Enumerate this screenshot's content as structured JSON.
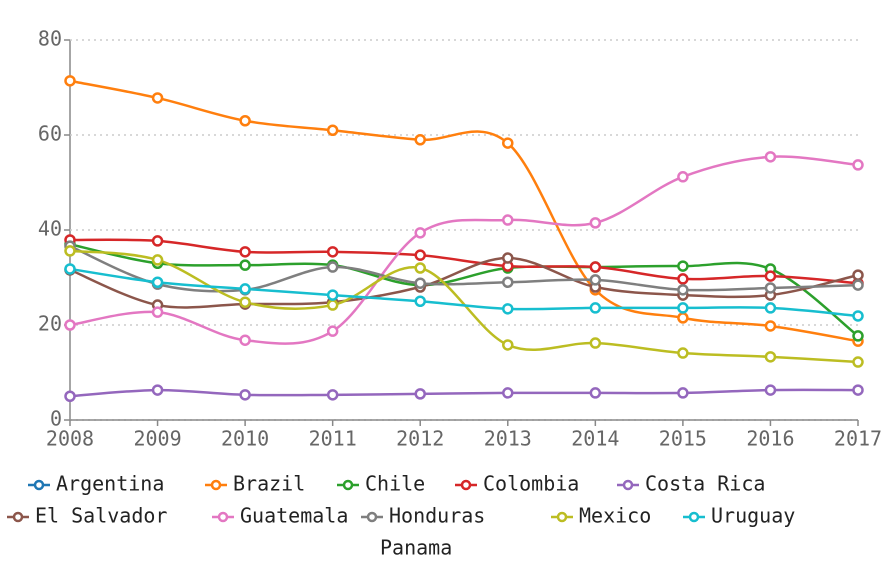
{
  "chart_data": {
    "type": "line",
    "x": [
      2008,
      2009,
      2010,
      2011,
      2012,
      2013,
      2014,
      2015,
      2016,
      2017
    ],
    "xlim": [
      2008,
      2017
    ],
    "xticks": [
      2008,
      2009,
      2010,
      2011,
      2012,
      2013,
      2014,
      2015,
      2016,
      2017
    ],
    "ylim": [
      0,
      80
    ],
    "yticks": [
      0,
      20,
      40,
      60,
      80
    ],
    "grid": true,
    "legend": "bottom",
    "series": [
      {
        "name": "Argentina",
        "color": "#1f77b4",
        "values": [
          null,
          null,
          null,
          null,
          null,
          null,
          null,
          null,
          null,
          null
        ]
      },
      {
        "name": "Brazil",
        "color": "#ff7f0e",
        "values": [
          71.4,
          67.8,
          63.0,
          61.0,
          59.0,
          58.3,
          27.4,
          21.5,
          19.8,
          16.6
        ]
      },
      {
        "name": "Chile",
        "color": "#2ca02c",
        "values": [
          37.0,
          33.0,
          32.6,
          32.6,
          28.4,
          32.0,
          32.2,
          32.4,
          31.8,
          17.7
        ]
      },
      {
        "name": "Colombia",
        "color": "#d62728",
        "values": [
          37.9,
          37.7,
          35.4,
          35.4,
          34.7,
          32.4,
          32.2,
          29.7,
          30.3,
          28.8
        ]
      },
      {
        "name": "Costa Rica",
        "color": "#9467bd",
        "values": [
          5.0,
          6.3,
          5.3,
          5.3,
          5.5,
          5.7,
          5.7,
          5.7,
          6.3,
          6.3
        ]
      },
      {
        "name": "El Salvador",
        "color": "#8c564b",
        "values": [
          31.6,
          24.2,
          24.4,
          24.8,
          28.0,
          34.1,
          28.0,
          26.3,
          26.3,
          30.5
        ]
      },
      {
        "name": "Guatemala",
        "color": "#e377c2",
        "values": [
          20.0,
          22.7,
          16.8,
          18.7,
          39.4,
          42.1,
          41.5,
          51.2,
          55.4,
          53.7
        ]
      },
      {
        "name": "Honduras",
        "color": "#7f7f7f",
        "values": [
          36.6,
          28.6,
          27.4,
          32.2,
          28.8,
          29.0,
          29.5,
          27.4,
          27.8,
          28.4
        ]
      },
      {
        "name": "Mexico",
        "color": "#bcbd22",
        "values": [
          35.6,
          33.7,
          24.8,
          24.2,
          32.0,
          15.8,
          16.2,
          14.1,
          13.3,
          12.2
        ]
      },
      {
        "name": "Uruguay",
        "color": "#17becf",
        "values": [
          31.8,
          29.0,
          27.6,
          26.3,
          25.0,
          23.4,
          23.6,
          23.6,
          23.6,
          21.9
        ]
      },
      {
        "name": "Panama",
        "values": [
          null,
          null,
          null,
          null,
          null,
          null,
          null,
          null,
          null,
          null
        ]
      }
    ]
  }
}
